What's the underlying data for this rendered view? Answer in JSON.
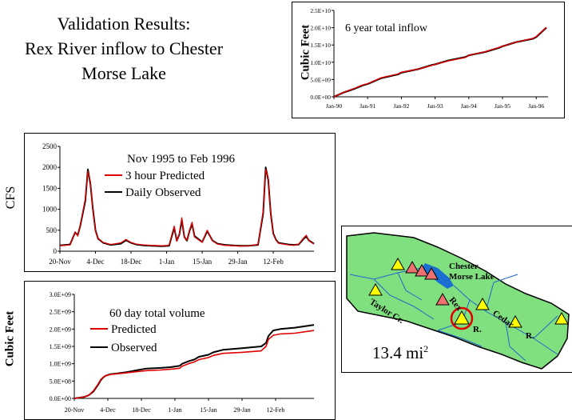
{
  "title_lines": [
    "Validation Results:",
    "Rex River inflow to Chester",
    "Morse Lake"
  ],
  "colors": {
    "predicted": "#e00000",
    "observed": "#000000",
    "map_land": "#80e080",
    "lake": "#1a6fd0",
    "river": "#2266cc"
  },
  "chart_data": [
    {
      "id": "total_inflow",
      "type": "line",
      "title": "6 year total inflow",
      "xlabel": "",
      "ylabel": "Cubic Feet",
      "ylim": [
        0,
        25000000000
      ],
      "yticks": [
        "0.0E+00",
        "5.0E+09",
        "1.0E+10",
        "1.5E+10",
        "2.0E+10",
        "2.5E+10"
      ],
      "xticks": [
        "Jan-90",
        "Jan-91",
        "Jan-92",
        "Jan-93",
        "Jan-94",
        "Jan-95",
        "Jan-96"
      ],
      "xdomain": [
        1990.0,
        1996.35
      ],
      "series": [
        {
          "color": "#000000",
          "width": 2.2,
          "x": [
            1990.0,
            1990.3,
            1990.6,
            1990.85,
            1991.0,
            1991.4,
            1991.9,
            1992.0,
            1992.5,
            1992.9,
            1993.0,
            1993.4,
            1993.9,
            1994.0,
            1994.5,
            1994.9,
            1995.0,
            1995.4,
            1995.9,
            1996.0,
            1996.3
          ],
          "y": [
            0,
            1300000000.0,
            2300000000.0,
            3300000000.0,
            3700000000.0,
            5400000000.0,
            6500000000.0,
            7000000000.0,
            8000000000.0,
            9200000000.0,
            9400000000.0,
            10500000000.0,
            11500000000.0,
            12000000000.0,
            13000000000.0,
            14200000000.0,
            14600000000.0,
            15800000000.0,
            16800000000.0,
            17300000000.0,
            20000000000.0
          ]
        },
        {
          "color": "#e00000",
          "width": 1.4,
          "x": [
            1990.0,
            1990.3,
            1990.6,
            1990.85,
            1991.0,
            1991.4,
            1991.9,
            1992.0,
            1992.5,
            1992.9,
            1993.0,
            1993.4,
            1993.9,
            1994.0,
            1994.5,
            1994.9,
            1995.0,
            1995.4,
            1995.9,
            1996.0,
            1996.3
          ],
          "y": [
            0,
            1300000000.0,
            2400000000.0,
            3400000000.0,
            3800000000.0,
            5500000000.0,
            6600000000.0,
            7100000000.0,
            8000000000.0,
            9100000000.0,
            9400000000.0,
            10400000000.0,
            11400000000.0,
            12000000000.0,
            13100000000.0,
            14300000000.0,
            14600000000.0,
            15800000000.0,
            16900000000.0,
            17400000000.0,
            20100000000.0
          ]
        }
      ]
    },
    {
      "id": "flow",
      "type": "line",
      "title": "Nov 1995  to Feb 1996",
      "xlabel": "",
      "ylabel": "CFS",
      "ylim": [
        0,
        2500
      ],
      "yticks": [
        "0",
        "500",
        "1000",
        "1500",
        "2000",
        "2500"
      ],
      "xticks": [
        "20-Nov",
        "4-Dec",
        "18-Dec",
        "1-Jan",
        "15-Jan",
        "29-Jan",
        "12-Feb"
      ],
      "xdomain": [
        0,
        100
      ],
      "series": [
        {
          "name": "Daily Observed",
          "color": "#000000",
          "width": 2,
          "x": [
            0,
            4,
            6,
            7,
            8,
            10,
            11,
            12,
            13,
            14,
            15,
            17,
            20,
            24,
            26,
            28,
            30,
            33,
            36,
            40,
            43,
            44,
            45,
            46,
            47,
            48,
            49,
            50,
            51,
            52,
            53,
            56,
            57,
            58,
            60,
            62,
            65,
            68,
            71,
            74,
            78,
            80,
            81,
            82,
            83,
            84,
            85,
            86,
            88,
            90,
            92,
            94,
            96,
            97,
            98,
            100
          ],
          "y": [
            140,
            160,
            450,
            380,
            600,
            1200,
            1950,
            1600,
            1000,
            500,
            300,
            200,
            150,
            180,
            260,
            200,
            160,
            140,
            130,
            120,
            130,
            350,
            560,
            250,
            400,
            740,
            340,
            250,
            480,
            650,
            360,
            220,
            350,
            480,
            260,
            180,
            150,
            140,
            130,
            130,
            150,
            900,
            2000,
            1700,
            900,
            420,
            280,
            200,
            180,
            160,
            150,
            160,
            300,
            350,
            260,
            180
          ]
        },
        {
          "name": "3 hour Predicted",
          "color": "#e00000",
          "width": 1.3,
          "x": [
            0,
            4,
            6,
            7,
            8,
            10,
            11,
            12,
            13,
            14,
            15,
            17,
            20,
            24,
            26,
            28,
            30,
            33,
            36,
            40,
            43,
            44,
            45,
            46,
            47,
            48,
            49,
            50,
            51,
            52,
            53,
            56,
            57,
            58,
            60,
            62,
            65,
            68,
            71,
            74,
            78,
            80,
            81,
            82,
            83,
            84,
            85,
            86,
            88,
            90,
            92,
            94,
            96,
            97,
            98,
            100
          ],
          "y": [
            130,
            150,
            460,
            360,
            620,
            1250,
            1900,
            1650,
            950,
            480,
            310,
            210,
            160,
            200,
            280,
            210,
            170,
            150,
            140,
            130,
            140,
            380,
            600,
            240,
            420,
            800,
            330,
            260,
            500,
            690,
            340,
            210,
            360,
            500,
            250,
            170,
            140,
            130,
            120,
            125,
            160,
            950,
            1950,
            1750,
            880,
            400,
            270,
            190,
            170,
            150,
            140,
            170,
            320,
            380,
            250,
            170
          ]
        }
      ]
    },
    {
      "id": "volume",
      "type": "line",
      "title": "60 day total volume",
      "xlabel": "",
      "ylabel": "Cubic Feet",
      "ylim": [
        0,
        3000000000
      ],
      "yticks": [
        "0.0E+00",
        "5.0E+08",
        "1.0E+09",
        "1.5E+09",
        "2.0E+09",
        "2.5E+09",
        "3.0E+09"
      ],
      "xticks": [
        "20-Nov",
        "4-Dec",
        "18-Dec",
        "1-Jan",
        "15-Jan",
        "29-Jan",
        "12-Feb"
      ],
      "xdomain": [
        0,
        100
      ],
      "series": [
        {
          "name": "Observed",
          "color": "#000000",
          "width": 2,
          "x": [
            0,
            4,
            6,
            8,
            10,
            11,
            12,
            13,
            15,
            18,
            22,
            26,
            30,
            36,
            40,
            44,
            45,
            48,
            50,
            52,
            56,
            58,
            62,
            70,
            78,
            80,
            81,
            83,
            86,
            92,
            96,
            100
          ],
          "y": [
            0,
            40000000.0,
            90000000.0,
            200000000.0,
            400000000.0,
            520000000.0,
            600000000.0,
            650000000.0,
            700000000.0,
            720000000.0,
            760000000.0,
            810000000.0,
            860000000.0,
            880000000.0,
            900000000.0,
            940000000.0,
            1000000000.0,
            1080000000.0,
            1120000000.0,
            1200000000.0,
            1260000000.0,
            1330000000.0,
            1400000000.0,
            1450000000.0,
            1500000000.0,
            1600000000.0,
            1800000000.0,
            1960000000.0,
            2000000000.0,
            2040000000.0,
            2080000000.0,
            2120000000.0
          ]
        },
        {
          "name": "Predicted",
          "color": "#e00000",
          "width": 1.6,
          "x": [
            0,
            4,
            6,
            8,
            10,
            11,
            12,
            13,
            15,
            18,
            22,
            26,
            30,
            36,
            40,
            44,
            45,
            48,
            50,
            52,
            56,
            58,
            62,
            70,
            78,
            80,
            81,
            83,
            86,
            92,
            96,
            100
          ],
          "y": [
            0,
            40000000.0,
            90000000.0,
            220000000.0,
            420000000.0,
            540000000.0,
            610000000.0,
            650000000.0,
            690000000.0,
            710000000.0,
            740000000.0,
            770000000.0,
            800000000.0,
            820000000.0,
            840000000.0,
            870000000.0,
            930000000.0,
            1010000000.0,
            1050000000.0,
            1120000000.0,
            1180000000.0,
            1240000000.0,
            1300000000.0,
            1330000000.0,
            1370000000.0,
            1500000000.0,
            1700000000.0,
            1820000000.0,
            1860000000.0,
            1880000000.0,
            1920000000.0,
            1960000000.0
          ]
        }
      ]
    }
  ],
  "map": {
    "lake_label_1": "Chester",
    "lake_label_2": "Morse Lake",
    "taylor": "Taylor Cr.",
    "rex": "Rex",
    "rex_r": "R.",
    "cedar": "Cedar",
    "cedar_r": "R.",
    "area": "13.4 mi",
    "area_sup": "2"
  }
}
